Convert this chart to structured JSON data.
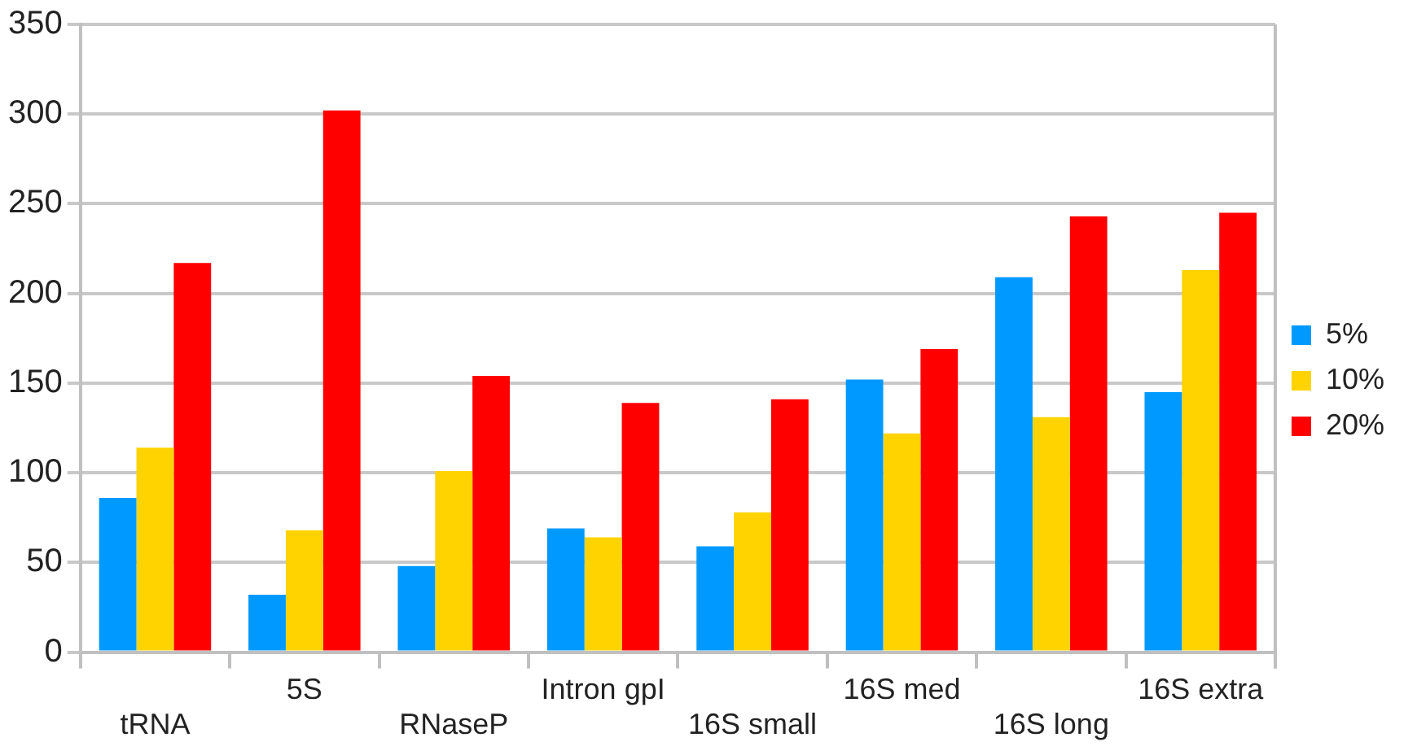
{
  "chart_data": {
    "type": "bar",
    "categories": [
      "tRNA",
      "5S",
      "RNaseP",
      "Intron gpI",
      "16S small",
      "16S med",
      "16S long",
      "16S extra"
    ],
    "series": [
      {
        "name": "5%",
        "color": "#0099ff",
        "values": [
          86,
          32,
          48,
          69,
          59,
          152,
          209,
          145
        ]
      },
      {
        "name": "10%",
        "color": "#ffd300",
        "values": [
          114,
          68,
          101,
          64,
          78,
          122,
          131,
          213
        ]
      },
      {
        "name": "20%",
        "color": "#ff0000",
        "values": [
          217,
          302,
          154,
          139,
          141,
          169,
          243,
          245
        ]
      }
    ],
    "ylim": [
      0,
      350
    ],
    "yticks": [
      0,
      50,
      100,
      150,
      200,
      250,
      300,
      350
    ],
    "grid": "y",
    "legend": "right"
  }
}
